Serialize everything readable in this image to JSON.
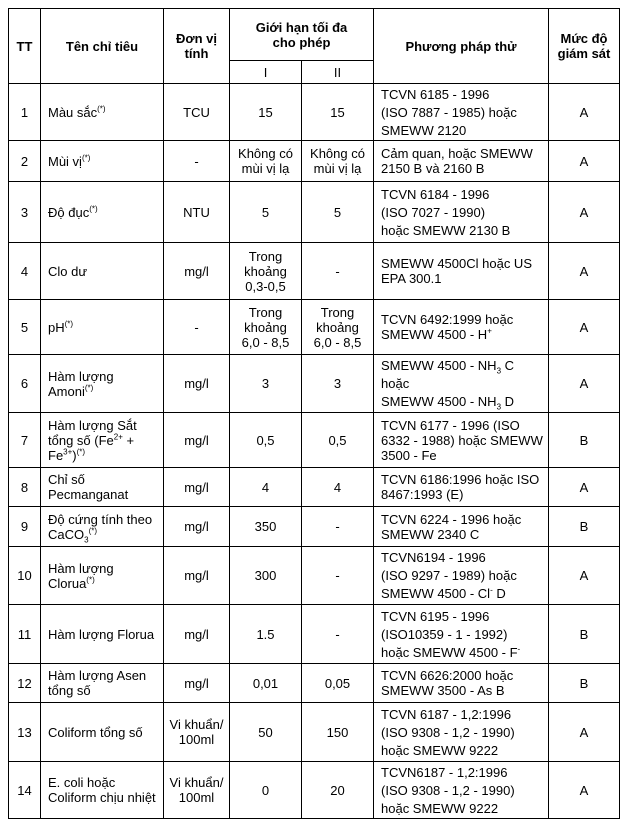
{
  "header": {
    "tt": "TT",
    "name": "Tên chỉ tiêu",
    "unit": "Đơn vị tính",
    "limit": "Giới hạn tối đa cho phép",
    "limit_1": "I",
    "limit_2": "II",
    "method": "Phương pháp thử",
    "level": "Mức độ giám sát"
  },
  "rows": [
    {
      "tt": "1",
      "name": [
        [
          "Màu sắc",
          ""
        ],
        [
          "(*)",
          "sup"
        ]
      ],
      "unit": "TCU",
      "i": "15",
      "ii": "15",
      "method": [
        [
          [
            "TCVN 6185 - 1996",
            ""
          ]
        ],
        [
          [
            "(ISO 7887 - 1985) hoặc",
            ""
          ]
        ],
        [
          [
            "SMEWW 2120",
            ""
          ]
        ]
      ],
      "level": "A",
      "h": 57
    },
    {
      "tt": "2",
      "name": [
        [
          "Mùi vị",
          ""
        ],
        [
          "(*)",
          "sup"
        ]
      ],
      "unit": "-",
      "i": "Không có mùi vị lạ",
      "ii": "Không có mùi vị lạ",
      "method": [
        [
          [
            "Cảm quan, hoặc SMEWW 2150 B và 2160 B",
            ""
          ]
        ]
      ],
      "level": "A",
      "h": 41
    },
    {
      "tt": "3",
      "name": [
        [
          "Độ đục",
          ""
        ],
        [
          "(*)",
          "sup"
        ]
      ],
      "unit": "NTU",
      "i": "5",
      "ii": "5",
      "method": [
        [
          [
            "TCVN 6184 - 1996",
            ""
          ]
        ],
        [
          [
            "(ISO 7027 - 1990)",
            ""
          ]
        ],
        [
          [
            "hoặc SMEWW 2130 B",
            ""
          ]
        ]
      ],
      "level": "A",
      "h": 61
    },
    {
      "tt": "4",
      "name": [
        [
          "Clo dư",
          ""
        ]
      ],
      "unit": "mg/l",
      "i": "Trong khoảng 0,3-0,5",
      "ii": "-",
      "method": [
        [
          [
            "SMEWW 4500Cl hoặc US EPA 300.1",
            ""
          ]
        ]
      ],
      "level": "A",
      "h": 57
    },
    {
      "tt": "5",
      "name": [
        [
          "pH",
          ""
        ],
        [
          "(*)",
          "sup"
        ]
      ],
      "unit": "-",
      "i": "Trong khoảng 6,0 - 8,5",
      "ii": "Trong khoảng 6,0 - 8,5",
      "method": [
        [
          [
            "TCVN 6492:1999 hoặc",
            ""
          ]
        ],
        [
          [
            "SMEWW 4500 - H",
            ""
          ],
          [
            "+",
            "sup"
          ]
        ]
      ],
      "level": "A",
      "h": 55
    },
    {
      "tt": "6",
      "name": [
        [
          "Hàm lượng Amoni",
          ""
        ],
        [
          "(*)",
          "sup"
        ]
      ],
      "unit": "mg/l",
      "i": "3",
      "ii": "3",
      "method": [
        [
          [
            "SMEWW 4500 - NH",
            ""
          ],
          [
            "3",
            "sub"
          ],
          [
            " C",
            ""
          ]
        ],
        [
          [
            "hoặc",
            ""
          ]
        ],
        [
          [
            "SMEWW 4500 - NH",
            ""
          ],
          [
            "3",
            "sub"
          ],
          [
            " D",
            ""
          ]
        ]
      ],
      "level": "A",
      "h": 58
    },
    {
      "tt": "7",
      "name": [
        [
          "Hàm lượng Sắt tổng số (Fe",
          ""
        ],
        [
          "2+",
          "sup"
        ],
        [
          " + Fe",
          ""
        ],
        [
          "3+",
          "sup"
        ],
        [
          ")",
          ""
        ],
        [
          "(*)",
          "sup"
        ]
      ],
      "unit": "mg/l",
      "i": "0,5",
      "ii": "0,5",
      "method": [
        [
          [
            "TCVN 6177 - 1996 (ISO 6332 - 1988) hoặc SMEWW 3500 - Fe",
            ""
          ]
        ]
      ],
      "level": "B",
      "h": 55
    },
    {
      "tt": "8",
      "name": [
        [
          "Chỉ số Pecmanganat",
          ""
        ]
      ],
      "unit": "mg/l",
      "i": "4",
      "ii": "4",
      "method": [
        [
          [
            "TCVN 6186:1996 hoặc ISO 8467:1993 (E)",
            ""
          ]
        ]
      ],
      "level": "A",
      "h": 39
    },
    {
      "tt": "9",
      "name": [
        [
          "Độ cứng tính theo CaCO",
          ""
        ],
        [
          "3",
          "sub"
        ],
        [
          "(*)",
          "sup"
        ]
      ],
      "unit": "mg/l",
      "i": "350",
      "ii": "-",
      "method": [
        [
          [
            "TCVN 6224 - 1996 hoặc SMEWW 2340 C",
            ""
          ]
        ]
      ],
      "level": "B",
      "h": 40
    },
    {
      "tt": "10",
      "name": [
        [
          "Hàm lượng Clorua",
          ""
        ],
        [
          "(*)",
          "sup"
        ]
      ],
      "unit": "mg/l",
      "i": "300",
      "ii": "-",
      "method": [
        [
          [
            "TCVN6194 - 1996",
            ""
          ]
        ],
        [
          [
            "(ISO 9297 - 1989) hoặc",
            ""
          ]
        ],
        [
          [
            "SMEWW 4500 - Cl",
            ""
          ],
          [
            "-",
            "sup"
          ],
          [
            " D",
            ""
          ]
        ]
      ],
      "level": "A",
      "h": 58
    },
    {
      "tt": "11",
      "name": [
        [
          "Hàm lượng Florua",
          ""
        ]
      ],
      "unit": "mg/l",
      "i": "1.5",
      "ii": "-",
      "method": [
        [
          [
            "TCVN 6195 - 1996",
            ""
          ]
        ],
        [
          [
            "(ISO10359 - 1 - 1992)",
            ""
          ]
        ],
        [
          [
            "hoặc SMEWW 4500 - F",
            ""
          ],
          [
            "-",
            "sup"
          ]
        ]
      ],
      "level": "B",
      "h": 59
    },
    {
      "tt": "12",
      "name": [
        [
          "Hàm lượng Asen tổng số",
          ""
        ]
      ],
      "unit": "mg/l",
      "i": "0,01",
      "ii": "0,05",
      "method": [
        [
          [
            "TCVN 6626:2000 hoặc SMEWW 3500 - As B",
            ""
          ]
        ]
      ],
      "level": "B",
      "h": 39
    },
    {
      "tt": "13",
      "name": [
        [
          "Coliform tổng số",
          ""
        ]
      ],
      "unit": "Vi khuẩn/ 100ml",
      "i": "50",
      "ii": "150",
      "method": [
        [
          [
            "TCVN 6187 - 1,2:1996",
            ""
          ]
        ],
        [
          [
            "(ISO 9308 - 1,2 - 1990)",
            ""
          ]
        ],
        [
          [
            "hoặc SMEWW 9222",
            ""
          ]
        ]
      ],
      "level": "A",
      "h": 59
    },
    {
      "tt": "14",
      "name": [
        [
          "E. coli hoặc Coliform chịu nhiệt",
          ""
        ]
      ],
      "unit": "Vi khuẩn/ 100ml",
      "i": "0",
      "ii": "20",
      "method": [
        [
          [
            "TCVN6187 - 1,2:1996",
            ""
          ]
        ],
        [
          [
            "(ISO 9308 - 1,2 - 1990)",
            ""
          ]
        ],
        [
          [
            "hoặc SMEWW 9222",
            ""
          ]
        ]
      ],
      "level": "A",
      "h": 57
    }
  ]
}
